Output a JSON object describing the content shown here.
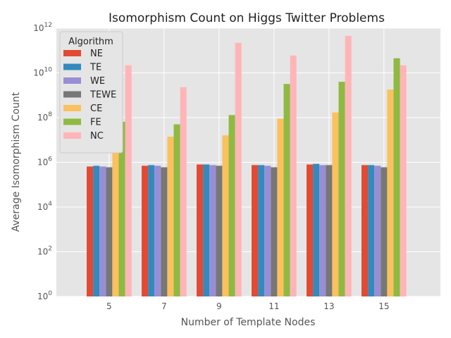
{
  "chart_data": {
    "type": "bar",
    "title": "Isomorphism Count on Higgs Twitter Problems",
    "xlabel": "Number of Template Nodes",
    "ylabel": "Average Isomorphism Count",
    "yscale": "log",
    "ylim_exp": [
      0,
      12
    ],
    "ytick_exps": [
      0,
      2,
      4,
      6,
      8,
      10,
      12
    ],
    "categories": [
      "5",
      "7",
      "9",
      "11",
      "13",
      "15"
    ],
    "grid": true,
    "legend": {
      "title": "Algorithm",
      "placement": "top-left"
    },
    "series": [
      {
        "name": "NE",
        "color": "#E24A33",
        "values": [
          650000,
          700000,
          800000,
          750000,
          800000,
          750000
        ]
      },
      {
        "name": "TE",
        "color": "#348ABD",
        "values": [
          700000,
          750000,
          800000,
          750000,
          850000,
          750000
        ]
      },
      {
        "name": "WE",
        "color": "#988ED5",
        "values": [
          650000,
          700000,
          750000,
          700000,
          750000,
          700000
        ]
      },
      {
        "name": "TEWE",
        "color": "#777777",
        "values": [
          600000,
          600000,
          700000,
          600000,
          750000,
          600000
        ]
      },
      {
        "name": "CE",
        "color": "#FBC15E",
        "values": [
          4000000,
          14000000,
          16000000,
          90000000,
          170000000,
          1800000000
        ]
      },
      {
        "name": "FE",
        "color": "#8EBA42",
        "values": [
          65000000,
          50000000,
          130000000,
          3200000000,
          4000000000,
          45000000000
        ]
      },
      {
        "name": "NC",
        "color": "#FFB5B8",
        "values": [
          22000000000,
          2300000000,
          220000000000,
          60000000000,
          450000000000,
          22000000000
        ]
      }
    ]
  }
}
